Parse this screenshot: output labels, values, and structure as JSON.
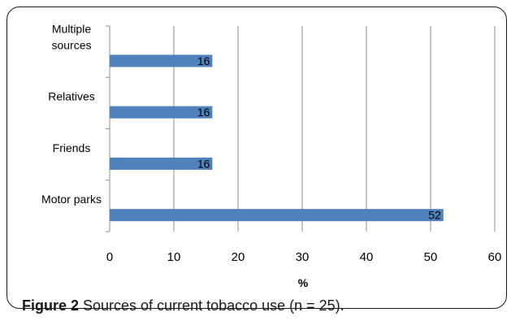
{
  "chart_data": {
    "type": "bar",
    "orientation": "horizontal",
    "categories": [
      "Multiple sources",
      "Relatives",
      "Friends",
      "Motor parks"
    ],
    "category_lines": [
      [
        "Multiple",
        "sources"
      ],
      [
        "Relatives"
      ],
      [
        "Friends"
      ],
      [
        "Motor parks"
      ]
    ],
    "values": [
      16,
      16,
      16,
      52
    ],
    "data_labels": [
      "16",
      "16",
      "16",
      "52"
    ],
    "xlabel": "%",
    "ylabel": "",
    "xlim": [
      0,
      60
    ],
    "xticks": [
      0,
      10,
      20,
      30,
      40,
      50,
      60
    ],
    "grid": "vertical",
    "legend": "none",
    "bar_color": "#4f81bd"
  },
  "caption": {
    "label": "Figure 2",
    "text": " Sources of current tobacco use (n = 25)",
    "trailing": "."
  }
}
